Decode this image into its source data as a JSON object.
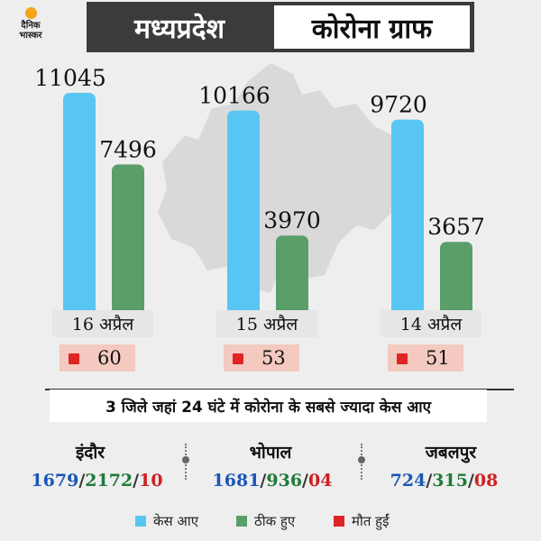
{
  "header": {
    "logo_text_line1": "दैनिक",
    "logo_text_line2": "भास्कर",
    "title_left": "मध्यप्रदेश",
    "title_right": "कोरोना ग्राफ"
  },
  "colors": {
    "cases": "#58c6f3",
    "recovered": "#5a9e6a",
    "deaths": "#e02424"
  },
  "chart_data": {
    "type": "bar",
    "categories": [
      "16 अप्रैल",
      "15 अप्रैल",
      "14 अप्रैल"
    ],
    "series": [
      {
        "name": "केस आए",
        "values": [
          11045,
          10166,
          9720
        ]
      },
      {
        "name": "ठीक हुए",
        "values": [
          7496,
          3970,
          3657
        ]
      }
    ],
    "deaths": [
      "60",
      "53",
      "51"
    ],
    "ylim": [
      0,
      11045
    ]
  },
  "district_heading": "3 जिले जहां 24 घंटे में कोरोना के सबसे ज्यादा केस आए",
  "districts": [
    {
      "name": "इंदौर",
      "cases": "1679",
      "recovered": "2172",
      "deaths": "10"
    },
    {
      "name": "भोपाल",
      "cases": "1681",
      "recovered": "936",
      "deaths": "04"
    },
    {
      "name": "जबलपुर",
      "cases": "724",
      "recovered": "315",
      "deaths": "08"
    }
  ],
  "legend": {
    "cases": "केस आए",
    "recovered": "ठीक हुए",
    "deaths": "मौत हुईं"
  }
}
